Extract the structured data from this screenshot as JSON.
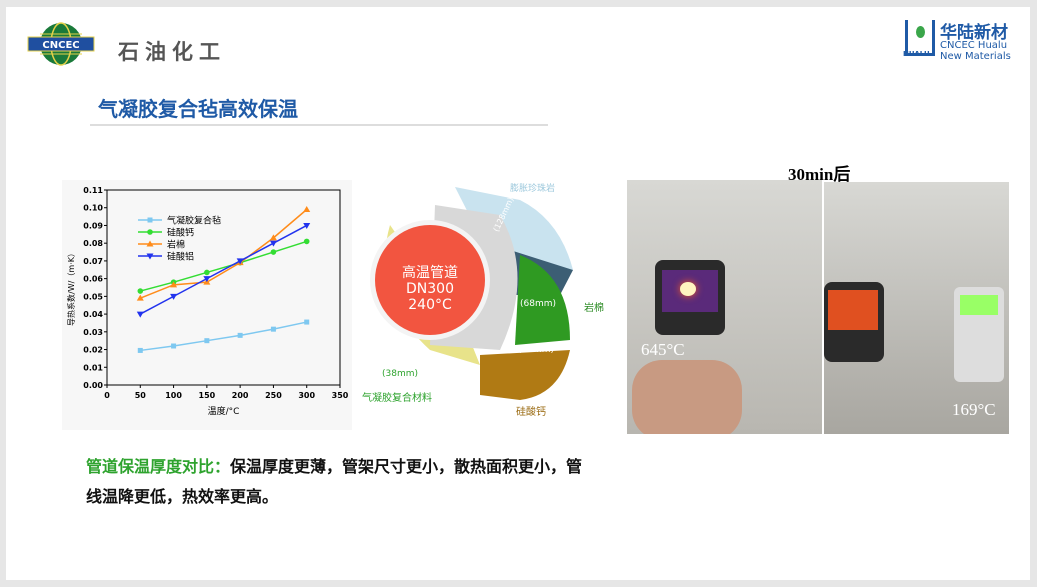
{
  "header": {
    "left_logo_text": "CNCEC",
    "left_company": "石油化工",
    "right_logo_cn": "华陆新材",
    "right_logo_en1": "CNCEC Hualu",
    "right_logo_en2": "New Materials",
    "right_logo_mark": "HUALU"
  },
  "title": "气凝胶复合毡高效保温",
  "chart_data": {
    "type": "line",
    "xlabel": "温度/°C",
    "ylabel": "导热系数/W/（m·K）",
    "xlim": [
      0,
      350
    ],
    "ylim": [
      0,
      0.11
    ],
    "xticks": [
      0,
      50,
      100,
      150,
      200,
      250,
      300,
      350
    ],
    "yticks": [
      "0.00",
      "0.01",
      "0.02",
      "0.03",
      "0.04",
      "0.05",
      "0.06",
      "0.07",
      "0.08",
      "0.09",
      "0.10",
      "0.11"
    ],
    "x": [
      50,
      100,
      150,
      200,
      250,
      300
    ],
    "legend": "top-left",
    "series": [
      {
        "name": "气凝胶复合毡",
        "color": "#7ec8f0",
        "marker": "square",
        "values": [
          0.0195,
          0.022,
          0.025,
          0.028,
          0.0315,
          0.0355
        ]
      },
      {
        "name": "硅酸钙",
        "color": "#33dd33",
        "marker": "circle",
        "values": [
          0.053,
          0.058,
          0.0635,
          0.069,
          0.075,
          0.081
        ]
      },
      {
        "name": "岩棉",
        "color": "#ff8c1a",
        "marker": "triangle-up",
        "values": [
          0.049,
          0.0565,
          0.058,
          0.069,
          0.083,
          0.099
        ]
      },
      {
        "name": "硅酸铝",
        "color": "#2233ee",
        "marker": "triangle-down",
        "values": [
          0.04,
          0.05,
          0.06,
          0.07,
          0.08,
          0.09
        ]
      }
    ]
  },
  "diagram": {
    "pipe_line1": "高温管道",
    "pipe_line2": "DN300",
    "pipe_line3": "240°C",
    "perlite": "膨胀珍珠岩",
    "perlite_t": "(128mm)",
    "rockwool": "岩棉",
    "rockwool_t": "(68mm)",
    "calcium": "硅酸钙",
    "calcium_t": "(82mm)",
    "aerogel": "气凝胶复合材料",
    "aerogel_t": "(38mm)"
  },
  "photos": {
    "before_temp": "645°C",
    "after_temp": "169°C",
    "time_label": "30min后"
  },
  "bottom": {
    "highlight": "管道保温厚度对比：",
    "text": "保温厚度更薄，管架尺寸更小，散热面积更小，管线温降更低，热效率更高。"
  }
}
